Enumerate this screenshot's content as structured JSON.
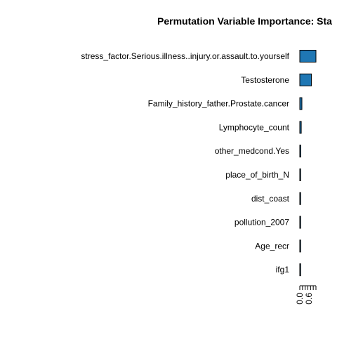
{
  "chart_data": {
    "type": "bar",
    "orientation": "horizontal",
    "title": "Permutation Variable Importance: Sta",
    "xlabel": "",
    "ylabel": "",
    "categories": [
      "stress_factor.Serious.illness..injury.or.assault.to.yourself",
      "Testosterone",
      "Family_history_father.Prostate.cancer",
      "Lymphocyte_count",
      "other_medcond.Yes",
      "place_of_birth_N",
      "dist_coast",
      "pollution_2007",
      "Age_recr",
      "ifg1"
    ],
    "values": [
      1.0,
      0.72,
      0.13,
      0.09,
      0.06,
      0.03,
      0.025,
      0.02,
      0.015,
      0.01
    ],
    "x_ticks": [
      "0.0",
      "0.6"
    ],
    "x_range": [
      0,
      1.0
    ],
    "grid": false,
    "legend": "none",
    "bar_color": "#1f77b4",
    "bar_edge_color": "#000000"
  }
}
